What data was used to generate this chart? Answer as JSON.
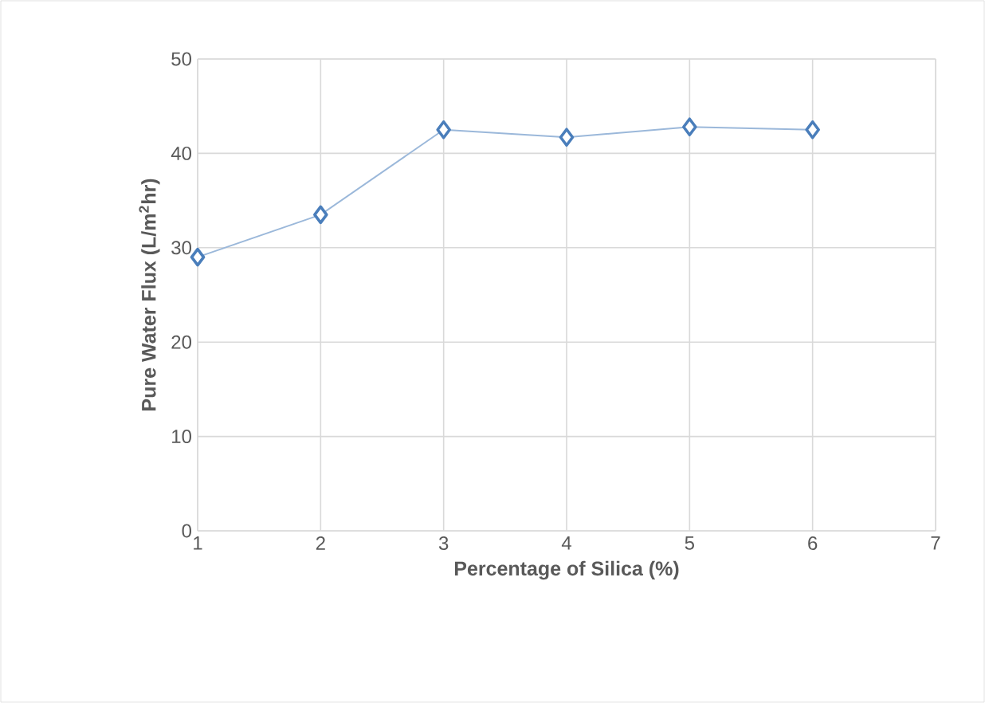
{
  "chart_data": {
    "type": "line",
    "xlabel": "Percentage of Silica (%)",
    "ylabel": "Pure Water Flux (L/m$^{2}$hr)",
    "x": [
      1,
      2,
      3,
      4,
      5,
      6
    ],
    "series": [
      {
        "color": "#4a7ebb",
        "values": [
          29.0,
          33.5,
          42.5,
          41.7,
          42.8,
          42.5
        ]
      }
    ],
    "xlim": [
      1,
      7
    ],
    "xticks": [
      1,
      2,
      3,
      4,
      5,
      6,
      7
    ],
    "ylim": [
      0,
      50
    ],
    "yticks": [
      0,
      10,
      20,
      30,
      40,
      50
    ],
    "grid": true,
    "marker": "diamond",
    "line_style": "solid"
  }
}
